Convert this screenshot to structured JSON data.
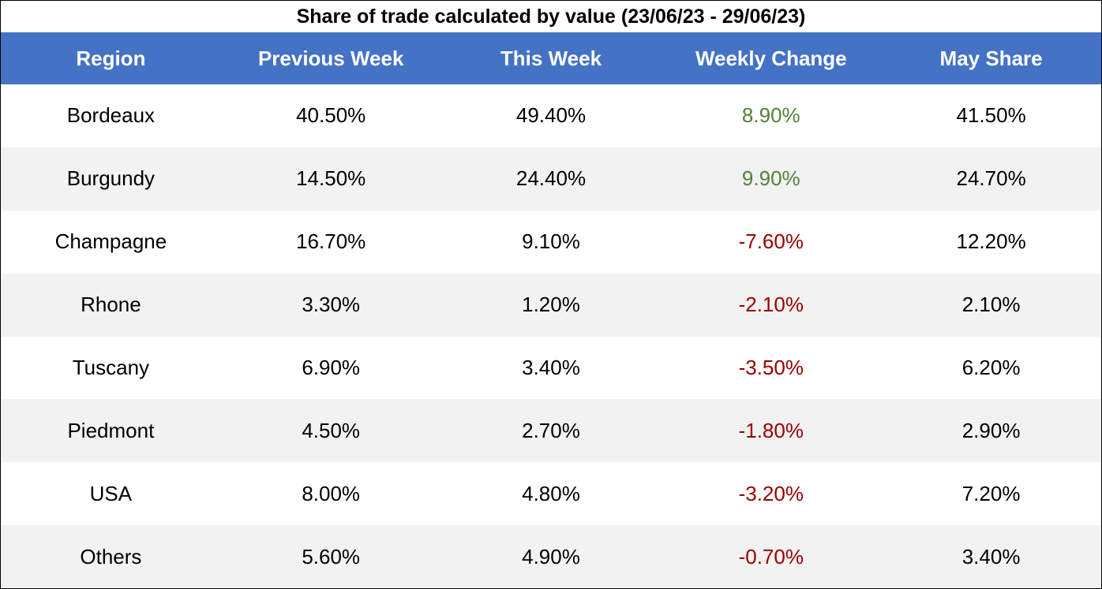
{
  "chart_data": {
    "type": "table",
    "title": "Share of trade calculated by value (23/06/23 - 29/06/23)",
    "columns": [
      "Region",
      "Previous Week",
      "This Week",
      "Weekly Change",
      "May Share"
    ],
    "rows": [
      [
        "Bordeaux",
        "40.50%",
        "49.40%",
        "8.90%",
        "41.50%"
      ],
      [
        "Burgundy",
        "14.50%",
        "24.40%",
        "9.90%",
        "24.70%"
      ],
      [
        "Champagne",
        "16.70%",
        "9.10%",
        "-7.60%",
        "12.20%"
      ],
      [
        "Rhone",
        "3.30%",
        "1.20%",
        "-2.10%",
        "2.10%"
      ],
      [
        "Tuscany",
        "6.90%",
        "3.40%",
        "-3.50%",
        "6.20%"
      ],
      [
        "Piedmont",
        "4.50%",
        "2.70%",
        "-1.80%",
        "2.90%"
      ],
      [
        "USA",
        "8.00%",
        "4.80%",
        "-3.20%",
        "7.20%"
      ],
      [
        "Others",
        "5.60%",
        "4.90%",
        "-0.70%",
        "3.40%"
      ]
    ]
  },
  "colors": {
    "header_bg": "#4472c4",
    "header_text": "#ffffff",
    "positive_change": "#538135",
    "negative_change": "#990000",
    "stripe": "#f2f2f2"
  }
}
